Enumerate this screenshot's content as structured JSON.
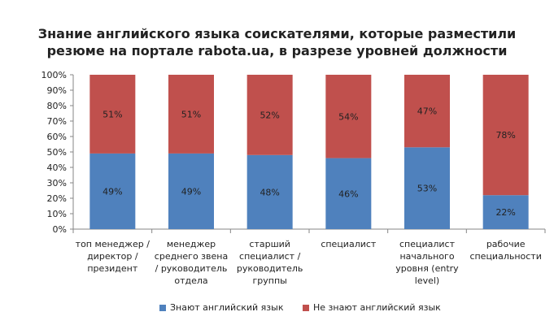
{
  "chart_data": {
    "type": "bar",
    "stacked": true,
    "title": "Знание английского языка соискателями, которые разместили резюме на портале rabota.ua, в разрезе уровней должности",
    "title_lines": [
      "Знание английского языка соискателями, которые разместили",
      "резюме на портале rabota.ua, в разрезе уровней должности"
    ],
    "categories": [
      "топ менеджер / директор / президент",
      "менеджер среднего звена / руководитель отдела",
      "старший специалист / руководитель группы",
      "специалист",
      "специалист начального уровня (entry level)",
      "рабочие специальности"
    ],
    "category_lines": [
      [
        "топ менеджер /",
        "директор /",
        "президент"
      ],
      [
        "менеджер",
        "среднего звена",
        "/ руководитель",
        "отдела"
      ],
      [
        "старший",
        "специалист /",
        "руководитель",
        "группы"
      ],
      [
        "специалист"
      ],
      [
        "специалист",
        "начального",
        "уровня (entry",
        "level)"
      ],
      [
        "рабочие",
        "специальности"
      ]
    ],
    "series": [
      {
        "name": "Знают английский язык",
        "values": [
          49,
          49,
          48,
          46,
          53,
          22
        ],
        "labels": [
          "49%",
          "49%",
          "48%",
          "46%",
          "53%",
          "22%"
        ],
        "color": "#4f81bd"
      },
      {
        "name": "Не знают английский язык",
        "values": [
          51,
          51,
          52,
          54,
          47,
          78
        ],
        "labels": [
          "51%",
          "51%",
          "52%",
          "54%",
          "47%",
          "78%"
        ],
        "color": "#c0504d"
      }
    ],
    "y_ticks": [
      "0%",
      "10%",
      "20%",
      "30%",
      "40%",
      "50%",
      "60%",
      "70%",
      "80%",
      "90%",
      "100%"
    ],
    "ylim": [
      0,
      100
    ],
    "grid": false,
    "legend_position": "bottom"
  }
}
